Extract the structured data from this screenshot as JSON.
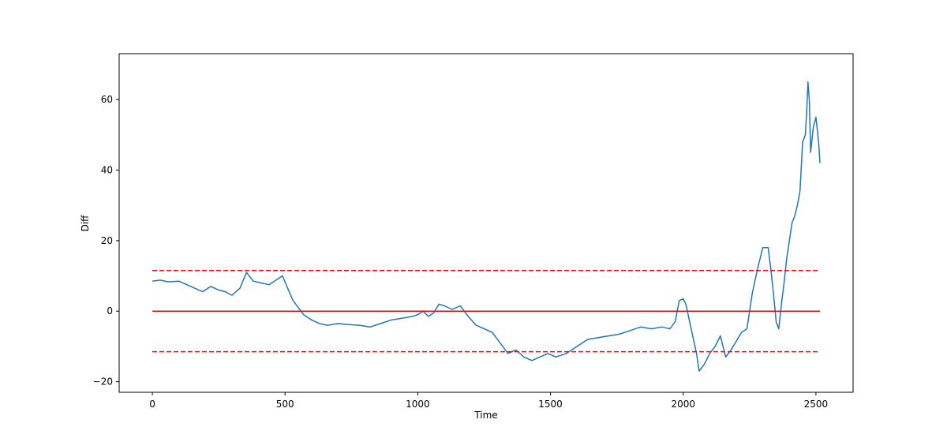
{
  "chart_data": {
    "type": "line",
    "title": "",
    "xlabel": "Time",
    "ylabel": "Diff",
    "xlim": [
      -125,
      2640
    ],
    "ylim": [
      -23,
      73
    ],
    "xticks": [
      0,
      500,
      1000,
      1500,
      2000,
      2500
    ],
    "yticks": [
      -20,
      0,
      20,
      40,
      60
    ],
    "grid": false,
    "legend": "none",
    "series": [
      {
        "color": "#1f77b4",
        "style": "solid",
        "x": [
          0,
          30,
          60,
          100,
          130,
          160,
          190,
          220,
          250,
          275,
          300,
          330,
          355,
          380,
          410,
          440,
          470,
          490,
          510,
          530,
          550,
          570,
          600,
          630,
          660,
          700,
          740,
          780,
          820,
          860,
          900,
          940,
          980,
          1000,
          1020,
          1040,
          1060,
          1080,
          1100,
          1130,
          1160,
          1190,
          1220,
          1250,
          1280,
          1310,
          1340,
          1370,
          1400,
          1430,
          1460,
          1490,
          1520,
          1560,
          1600,
          1640,
          1680,
          1720,
          1760,
          1800,
          1840,
          1880,
          1920,
          1950,
          1970,
          1985,
          2000,
          2010,
          2030,
          2050,
          2060,
          2080,
          2100,
          2120,
          2140,
          2160,
          2180,
          2200,
          2220,
          2240,
          2260,
          2280,
          2300,
          2320,
          2330,
          2340,
          2350,
          2360,
          2370,
          2380,
          2390,
          2400,
          2410,
          2420,
          2430,
          2440,
          2450,
          2460,
          2465,
          2470,
          2475,
          2480,
          2490,
          2500,
          2510,
          2515
        ],
        "y": [
          8.5,
          8.8,
          8.3,
          8.5,
          7.5,
          6.5,
          5.5,
          7,
          6,
          5.5,
          4.5,
          6.5,
          11,
          8.5,
          8,
          7.5,
          9,
          10,
          6.5,
          3,
          1,
          -1,
          -2.5,
          -3.5,
          -4,
          -3.5,
          -3.8,
          -4,
          -4.5,
          -3.5,
          -2.5,
          -2,
          -1.5,
          -1,
          0,
          -1.5,
          -0.5,
          2,
          1.5,
          0.5,
          1.5,
          -1.5,
          -4,
          -5,
          -6,
          -9,
          -12,
          -11,
          -13,
          -14,
          -13,
          -12,
          -13,
          -12,
          -10,
          -8,
          -7.5,
          -7,
          -6.5,
          -5.5,
          -4.5,
          -5,
          -4.5,
          -5,
          -3,
          3,
          3.5,
          2,
          -5,
          -12,
          -17,
          -15,
          -12,
          -10,
          -7,
          -13,
          -11,
          -8.5,
          -6,
          -5,
          5,
          12,
          18,
          18,
          12,
          5,
          -3,
          -5,
          2,
          8,
          15,
          20,
          25,
          27,
          30,
          34,
          48,
          50,
          56,
          65,
          60,
          45,
          52,
          55,
          48,
          42
        ]
      },
      {
        "color": "#ff0000",
        "style": "dashed",
        "x": [
          0,
          2515
        ],
        "y": [
          11.5,
          11.5
        ]
      },
      {
        "color": "#ff0000",
        "style": "solid",
        "x": [
          0,
          2515
        ],
        "y": [
          0,
          0
        ]
      },
      {
        "color": "#ff0000",
        "style": "dashed",
        "x": [
          0,
          2515
        ],
        "y": [
          -11.5,
          -11.5
        ]
      }
    ]
  }
}
